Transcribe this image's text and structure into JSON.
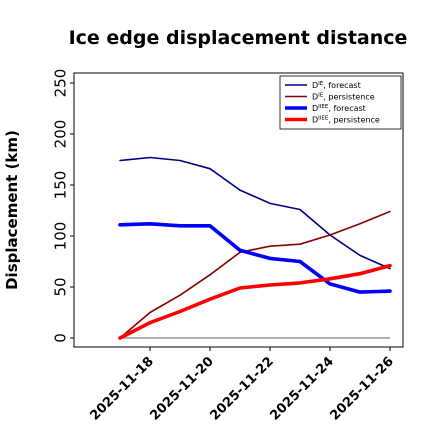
{
  "chart_data": {
    "type": "line",
    "title": "Ice edge displacement distance",
    "xlabel": "",
    "ylabel": "Displacement (km)",
    "ylim": [
      0,
      260
    ],
    "yticks": [
      0,
      50,
      100,
      150,
      200,
      250
    ],
    "xlim": [
      "2025-11-16",
      "2025-11-26"
    ],
    "xticks": [
      "2025-11-18",
      "2025-11-20",
      "2025-11-22",
      "2025-11-24",
      "2025-11-26"
    ],
    "highlight_tick": "2025-11-18",
    "highlight_color": "#228b22",
    "grid": false,
    "legend_position": "top-right",
    "baseline": 0,
    "x": [
      "2025-11-17",
      "2025-11-18",
      "2025-11-19",
      "2025-11-20",
      "2025-11-21",
      "2025-11-22",
      "2025-11-23",
      "2025-11-24",
      "2025-11-25",
      "2025-11-26"
    ],
    "series": [
      {
        "name": "D^IE, forecast",
        "base": "D",
        "sup": "IE",
        "suffix": ", forecast",
        "color": "#00008b",
        "width": 1.6,
        "values": [
          174,
          177,
          174,
          166,
          145,
          132,
          126,
          101,
          81,
          68
        ]
      },
      {
        "name": "D^IE, persistence",
        "base": "D",
        "sup": "IE",
        "suffix": ", persistence",
        "color": "#8b0000",
        "width": 1.6,
        "values": [
          0,
          25,
          42,
          62,
          84,
          90,
          92,
          101,
          112,
          124
        ]
      },
      {
        "name": "D^IIEE, forecast",
        "base": "D",
        "sup": "IIEE",
        "suffix": ", forecast",
        "color": "#0000ff",
        "width": 3.6,
        "values": [
          111,
          112,
          110,
          110,
          86,
          78,
          75,
          53,
          45,
          46
        ]
      },
      {
        "name": "D^IIEE, persistence",
        "base": "D",
        "sup": "IIEE",
        "suffix": ", persistence",
        "color": "#ff0000",
        "width": 3.6,
        "values": [
          0,
          15,
          26,
          38,
          49,
          52,
          54,
          58,
          63,
          71
        ]
      }
    ]
  }
}
